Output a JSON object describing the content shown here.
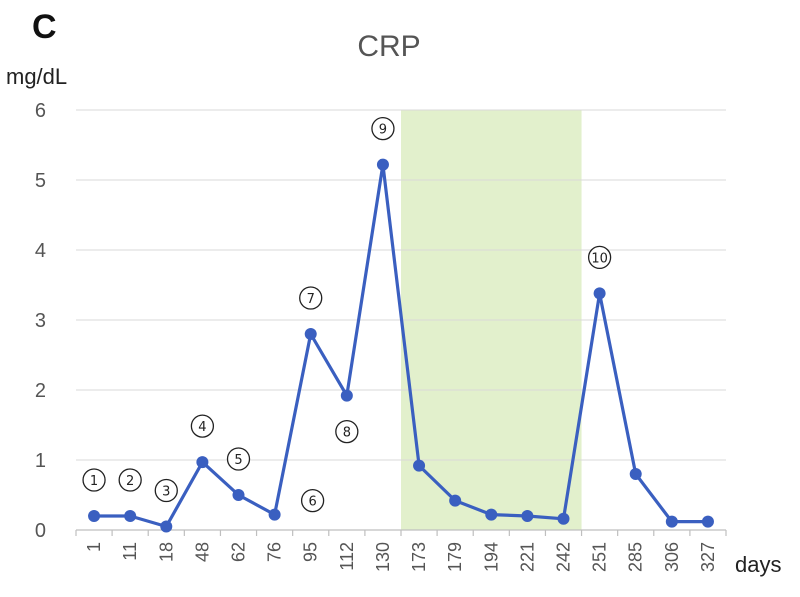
{
  "panel_label": "C",
  "chart_data": {
    "type": "line",
    "title": "CRP",
    "ylabel": "mg/dL",
    "xlabel": "days",
    "ylim": [
      0,
      6
    ],
    "yticks": [
      0,
      1,
      2,
      3,
      4,
      5,
      6
    ],
    "grid": true,
    "categories": [
      "1",
      "11",
      "18",
      "48",
      "62",
      "76",
      "95",
      "112",
      "130",
      "173",
      "179",
      "194",
      "221",
      "242",
      "251",
      "285",
      "306",
      "327"
    ],
    "series": [
      {
        "color": "#3a5fc0",
        "values": [
          0.2,
          0.2,
          0.05,
          0.97,
          0.5,
          0.22,
          2.8,
          1.92,
          5.22,
          0.92,
          0.42,
          0.22,
          0.2,
          0.16,
          3.38,
          0.8,
          0.12,
          0.12
        ]
      }
    ],
    "shaded_region": {
      "from_category": "173",
      "to_category": "242",
      "color": "#e2f0cc"
    },
    "annotations": [
      {
        "text": "①",
        "category": "1",
        "placement": "above"
      },
      {
        "text": "②",
        "category": "11",
        "placement": "above"
      },
      {
        "text": "③",
        "category": "18",
        "placement": "above"
      },
      {
        "text": "④",
        "category": "48",
        "placement": "above"
      },
      {
        "text": "⑤",
        "category": "62",
        "placement": "above"
      },
      {
        "text": "⑥",
        "category": "76",
        "placement": "right"
      },
      {
        "text": "⑦",
        "category": "95",
        "placement": "above"
      },
      {
        "text": "⑧",
        "category": "112",
        "placement": "below"
      },
      {
        "text": "⑨",
        "category": "130",
        "placement": "above"
      },
      {
        "text": "⑩",
        "category": "251",
        "placement": "above"
      }
    ]
  }
}
